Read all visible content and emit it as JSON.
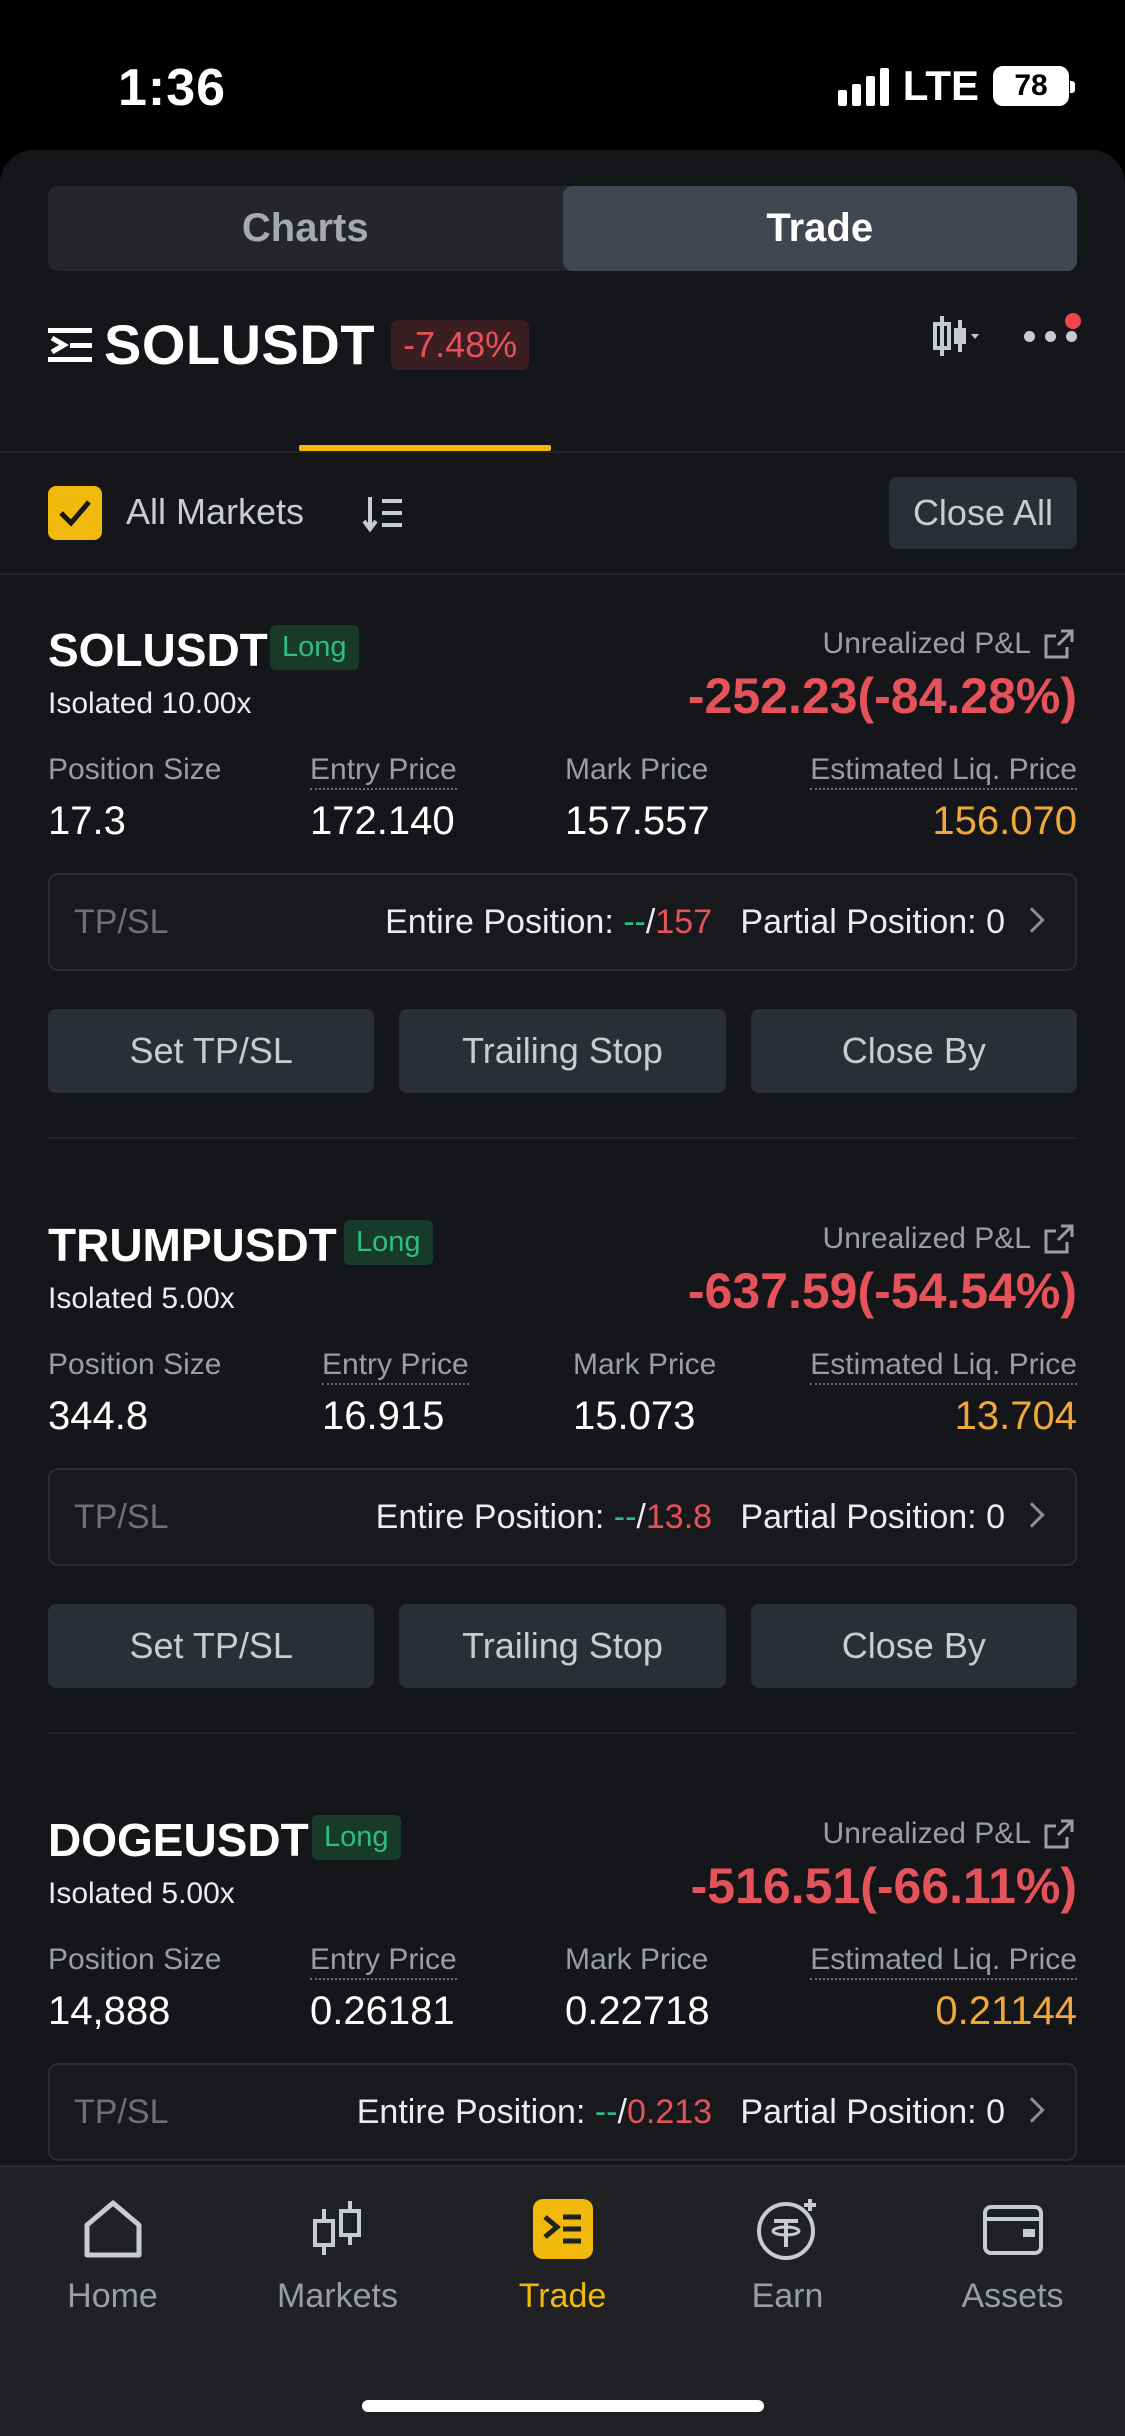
{
  "status_bar": {
    "time": "1:36",
    "network": "LTE",
    "battery": "78"
  },
  "segmented": {
    "charts": "Charts",
    "trade": "Trade"
  },
  "header": {
    "pair": "SOLUSDT",
    "change": "-7.48%"
  },
  "filter": {
    "all_markets": "All Markets",
    "close_all": "Close All"
  },
  "positions": [
    {
      "symbol": "SOLUSDT",
      "side": "Long",
      "mode": "Isolated 10.00x",
      "pnl_label": "Unrealized P&L",
      "pnl_value": "-252.23(-84.28%)",
      "size_label": "Position Size",
      "size": "17.3",
      "entry_label": "Entry Price",
      "entry": "172.140",
      "mark_label": "Mark Price",
      "mark": "157.557",
      "liq_label": "Estimated Liq. Price",
      "liq": "156.070",
      "tpsl_label": "TP/SL",
      "entire_label": "Entire Position: ",
      "tp": "--",
      "sep": "/",
      "sl": "157",
      "partial": "Partial Position: 0",
      "btn_tpsl": "Set TP/SL",
      "btn_trailing": "Trailing Stop",
      "btn_close": "Close By"
    },
    {
      "symbol": "TRUMPUSDT",
      "side": "Long",
      "mode": "Isolated 5.00x",
      "pnl_label": "Unrealized P&L",
      "pnl_value": "-637.59(-54.54%)",
      "size_label": "Position Size",
      "size": "344.8",
      "entry_label": "Entry Price",
      "entry": "16.915",
      "mark_label": "Mark Price",
      "mark": "15.073",
      "liq_label": "Estimated Liq. Price",
      "liq": "13.704",
      "tpsl_label": "TP/SL",
      "entire_label": "Entire Position: ",
      "tp": "--",
      "sep": "/",
      "sl": "13.8",
      "partial": "Partial Position: 0",
      "btn_tpsl": "Set TP/SL",
      "btn_trailing": "Trailing Stop",
      "btn_close": "Close By"
    },
    {
      "symbol": "DOGEUSDT",
      "side": "Long",
      "mode": "Isolated 5.00x",
      "pnl_label": "Unrealized P&L",
      "pnl_value": "-516.51(-66.11%)",
      "size_label": "Position Size",
      "size": "14,888",
      "entry_label": "Entry Price",
      "entry": "0.26181",
      "mark_label": "Mark Price",
      "mark": "0.22718",
      "liq_label": "Estimated Liq. Price",
      "liq": "0.21144",
      "tpsl_label": "TP/SL",
      "entire_label": "Entire Position: ",
      "tp": "--",
      "sep": "/",
      "sl": "0.213",
      "partial": "Partial Position: 0"
    }
  ],
  "nav": [
    {
      "label": "Home",
      "icon": "home-icon"
    },
    {
      "label": "Markets",
      "icon": "candlestick-icon"
    },
    {
      "label": "Trade",
      "icon": "trade-icon"
    },
    {
      "label": "Earn",
      "icon": "earn-icon"
    },
    {
      "label": "Assets",
      "icon": "wallet-icon"
    }
  ],
  "colors": {
    "accent": "#f0b90b",
    "loss": "#e5525a",
    "gain": "#2ebd85",
    "liq": "#f0a83a"
  }
}
